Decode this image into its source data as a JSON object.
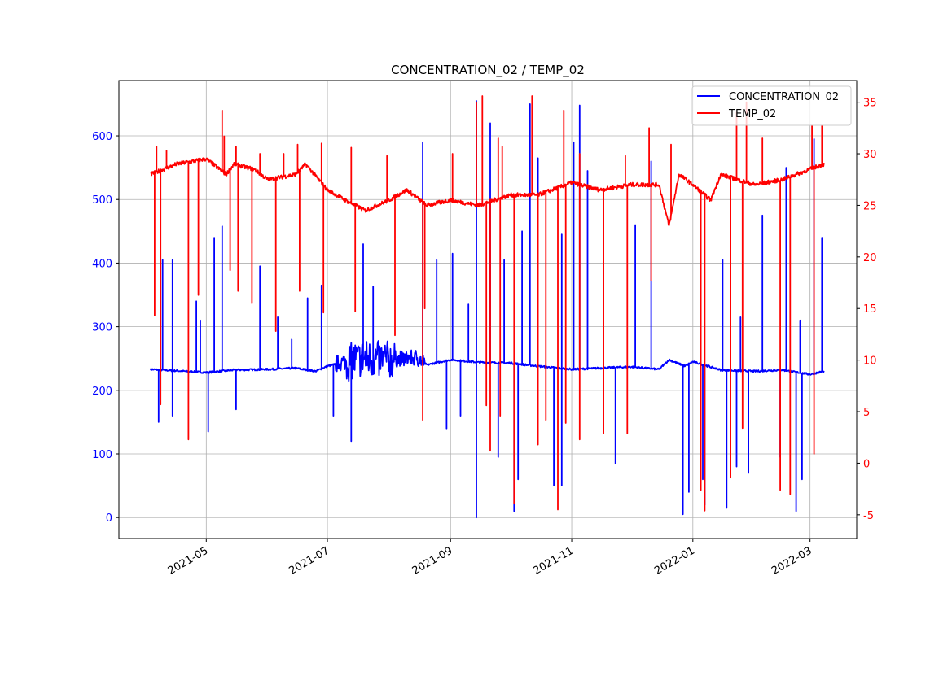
{
  "chart_data": {
    "type": "line",
    "title": "CONCENTRATION_02 / TEMP_02",
    "xlabel": "",
    "x_unit": "days since 2021-04-01",
    "xlim": [
      -14,
      357.5
    ],
    "x_ticks": [
      {
        "day": 30,
        "label": "2021-05"
      },
      {
        "day": 91,
        "label": "2021-07"
      },
      {
        "day": 153,
        "label": "2021-09"
      },
      {
        "day": 214,
        "label": "2021-11"
      },
      {
        "day": 275,
        "label": "2022-01"
      },
      {
        "day": 334,
        "label": "2022-03"
      }
    ],
    "grid": true,
    "legend_position": "top-right",
    "left_axis": {
      "ylim": [
        -33,
        687
      ],
      "ticks": [
        0,
        100,
        200,
        300,
        400,
        500,
        600
      ],
      "color": "#0000ff"
    },
    "right_axis": {
      "ylim": [
        -7.3,
        37.1
      ],
      "ticks": [
        -5,
        0,
        5,
        10,
        15,
        20,
        25,
        30,
        35
      ],
      "color": "#ff0000"
    },
    "series": [
      {
        "name": "CONCENTRATION_02",
        "axis": "left",
        "color": "#0000ff",
        "baseline": [
          [
            2,
            233
          ],
          [
            19,
            230
          ],
          [
            30,
            228
          ],
          [
            44,
            232
          ],
          [
            61,
            233
          ],
          [
            75,
            235
          ],
          [
            85,
            230
          ],
          [
            91,
            238
          ],
          [
            100,
            245
          ],
          [
            110,
            250
          ],
          [
            122,
            248
          ],
          [
            136,
            252
          ],
          [
            141,
            240
          ],
          [
            153,
            248
          ],
          [
            167,
            244
          ],
          [
            183,
            243
          ],
          [
            197,
            238
          ],
          [
            214,
            233
          ],
          [
            228,
            235
          ],
          [
            244,
            237
          ],
          [
            258,
            233
          ],
          [
            263,
            248
          ],
          [
            271,
            238
          ],
          [
            275,
            245
          ],
          [
            289,
            232
          ],
          [
            306,
            230
          ],
          [
            320,
            232
          ],
          [
            334,
            225
          ],
          [
            341,
            230
          ]
        ],
        "spikes": [
          [
            6,
            150
          ],
          [
            8,
            405
          ],
          [
            13,
            160
          ],
          [
            13,
            405
          ],
          [
            25,
            340
          ],
          [
            27,
            310
          ],
          [
            31,
            135
          ],
          [
            34,
            440
          ],
          [
            38,
            458
          ],
          [
            45,
            170
          ],
          [
            57,
            395
          ],
          [
            66,
            315
          ],
          [
            73,
            280
          ],
          [
            81,
            345
          ],
          [
            88,
            365
          ],
          [
            94,
            160
          ],
          [
            103,
            120
          ],
          [
            109,
            430
          ],
          [
            114,
            363
          ],
          [
            139,
            590
          ],
          [
            146,
            405
          ],
          [
            151,
            140
          ],
          [
            154,
            415
          ],
          [
            158,
            160
          ],
          [
            162,
            335
          ],
          [
            166,
            655
          ],
          [
            166,
            0
          ],
          [
            173,
            620
          ],
          [
            177,
            95
          ],
          [
            180,
            405
          ],
          [
            185,
            10
          ],
          [
            187,
            60
          ],
          [
            189,
            450
          ],
          [
            193,
            650
          ],
          [
            197,
            565
          ],
          [
            205,
            50
          ],
          [
            209,
            445
          ],
          [
            209,
            50
          ],
          [
            215,
            590
          ],
          [
            218,
            648
          ],
          [
            222,
            545
          ],
          [
            236,
            85
          ],
          [
            246,
            460
          ],
          [
            254,
            560
          ],
          [
            270,
            5
          ],
          [
            273,
            40
          ],
          [
            280,
            60
          ],
          [
            281,
            20
          ],
          [
            290,
            405
          ],
          [
            292,
            15
          ],
          [
            297,
            80
          ],
          [
            299,
            315
          ],
          [
            303,
            70
          ],
          [
            310,
            475
          ],
          [
            319,
            95
          ],
          [
            322,
            550
          ],
          [
            327,
            10
          ],
          [
            329,
            310
          ],
          [
            330,
            60
          ],
          [
            336,
            595
          ],
          [
            340,
            440
          ]
        ]
      },
      {
        "name": "TEMP_02",
        "axis": "right",
        "color": "#ff0000",
        "baseline": [
          [
            2,
            28
          ],
          [
            15,
            29
          ],
          [
            30,
            29.5
          ],
          [
            40,
            28
          ],
          [
            44,
            29
          ],
          [
            54,
            28.5
          ],
          [
            61,
            27.5
          ],
          [
            75,
            28
          ],
          [
            80,
            29
          ],
          [
            91,
            26.5
          ],
          [
            100,
            25.5
          ],
          [
            110,
            24.5
          ],
          [
            122,
            25.5
          ],
          [
            131,
            26.5
          ],
          [
            141,
            25
          ],
          [
            153,
            25.5
          ],
          [
            167,
            25
          ],
          [
            183,
            26
          ],
          [
            197,
            26
          ],
          [
            214,
            27.2
          ],
          [
            228,
            26.5
          ],
          [
            244,
            27
          ],
          [
            258,
            27
          ],
          [
            263,
            23
          ],
          [
            268,
            28
          ],
          [
            275,
            27
          ],
          [
            284,
            25.5
          ],
          [
            289,
            28
          ],
          [
            306,
            27
          ],
          [
            320,
            27.5
          ],
          [
            334,
            28.5
          ],
          [
            341,
            29
          ]
        ],
        "spikes": [
          [
            5,
            30.7
          ],
          [
            10,
            30.3
          ],
          [
            19,
            29
          ],
          [
            38,
            34.2
          ],
          [
            39,
            31.7
          ],
          [
            45,
            30.7
          ],
          [
            57,
            30
          ],
          [
            69,
            30
          ],
          [
            76,
            30.9
          ],
          [
            88,
            31
          ],
          [
            103,
            30.6
          ],
          [
            121,
            29.8
          ],
          [
            154,
            30
          ],
          [
            166,
            35
          ],
          [
            169,
            35.6
          ],
          [
            177,
            31.5
          ],
          [
            179,
            30.7
          ],
          [
            194,
            35.6
          ],
          [
            210,
            34.2
          ],
          [
            218,
            30
          ],
          [
            241,
            29.8
          ],
          [
            253,
            32.5
          ],
          [
            264,
            30.9
          ],
          [
            297,
            34
          ],
          [
            302,
            35
          ],
          [
            310,
            31.5
          ],
          [
            335,
            32.7
          ],
          [
            340,
            32.7
          ],
          [
            4,
            14.3
          ],
          [
            7,
            5.7
          ],
          [
            21,
            2.3
          ],
          [
            26,
            16.3
          ],
          [
            42,
            18.7
          ],
          [
            46,
            16.7
          ],
          [
            53,
            15.5
          ],
          [
            65,
            12.8
          ],
          [
            77,
            16.7
          ],
          [
            89,
            14.6
          ],
          [
            105,
            14.7
          ],
          [
            125,
            12.4
          ],
          [
            139,
            4.2
          ],
          [
            140,
            15
          ],
          [
            171,
            5.6
          ],
          [
            173,
            1.2
          ],
          [
            178,
            4.6
          ],
          [
            185,
            -3.9
          ],
          [
            197,
            1.8
          ],
          [
            201,
            4.2
          ],
          [
            207,
            -4.5
          ],
          [
            211,
            3.9
          ],
          [
            218,
            2.3
          ],
          [
            230,
            2.9
          ],
          [
            242,
            2.9
          ],
          [
            254,
            17.7
          ],
          [
            279,
            -2.6
          ],
          [
            281,
            -4.6
          ],
          [
            294,
            -1.4
          ],
          [
            300,
            3.4
          ],
          [
            319,
            -2.6
          ],
          [
            324,
            -3
          ],
          [
            336,
            0.9
          ]
        ]
      }
    ]
  }
}
